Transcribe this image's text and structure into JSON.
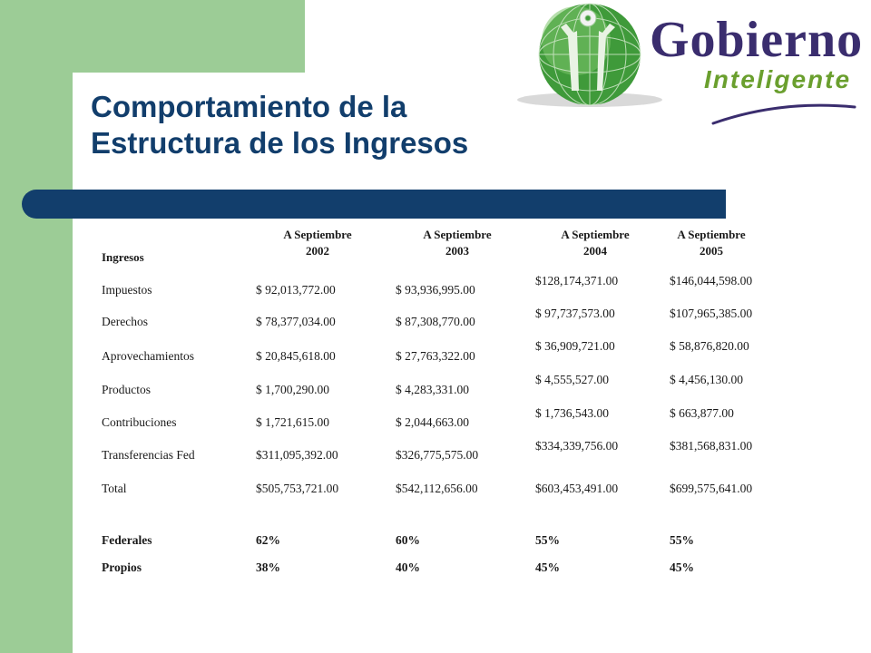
{
  "title": {
    "line1": "Comportamiento de la",
    "line2": "Estructura de los Ingresos"
  },
  "logo": {
    "word1": "Gobierno",
    "word2": "Inteligente",
    "colors": {
      "globe": "#3f9a3a",
      "word1": "#3a2d6e",
      "word2": "#6a9f2e"
    }
  },
  "table": {
    "row_header": "Ingresos",
    "columns": [
      {
        "line1": "A Septiembre",
        "line2": "2002"
      },
      {
        "line1": "A Septiembre",
        "line2": "2003"
      },
      {
        "line1": "A Septiembre",
        "line2": "2004"
      },
      {
        "line1": "A Septiembre",
        "line2": "2005"
      }
    ],
    "rows": [
      {
        "label": "Impuestos",
        "values": [
          "$ 92,013,772.00",
          "$ 93,936,995.00",
          "$128,174,371.00",
          "$146,044,598.00"
        ]
      },
      {
        "label": "Derechos",
        "values": [
          "$ 78,377,034.00",
          "$ 87,308,770.00",
          "$ 97,737,573.00",
          "$107,965,385.00"
        ]
      },
      {
        "label": "Aprovechamientos",
        "values": [
          "$ 20,845,618.00",
          "$ 27,763,322.00",
          "$ 36,909,721.00",
          "$ 58,876,820.00"
        ]
      },
      {
        "label": "Productos",
        "values": [
          "$ 1,700,290.00",
          "$ 4,283,331.00",
          "$ 4,555,527.00",
          "$ 4,456,130.00"
        ]
      },
      {
        "label": "Contribuciones",
        "values": [
          "$ 1,721,615.00",
          "$ 2,044,663.00",
          "$ 1,736,543.00",
          "$ 663,877.00"
        ]
      },
      {
        "label": "Transferencias Fed",
        "values": [
          "$311,095,392.00",
          "$326,775,575.00",
          "$334,339,756.00",
          "$381,568,831.00"
        ]
      },
      {
        "label": "Total",
        "values": [
          "$505,753,721.00",
          "$542,112,656.00",
          "$603,453,491.00",
          "$699,575,641.00"
        ]
      }
    ],
    "summary": [
      {
        "label": "Federales",
        "values": [
          "62%",
          "60%",
          "55%",
          "55%"
        ]
      },
      {
        "label": "Propios",
        "values": [
          "38%",
          "40%",
          "45%",
          "45%"
        ]
      }
    ]
  },
  "colors": {
    "green": "#9ccc96",
    "navy": "#123e6c"
  }
}
